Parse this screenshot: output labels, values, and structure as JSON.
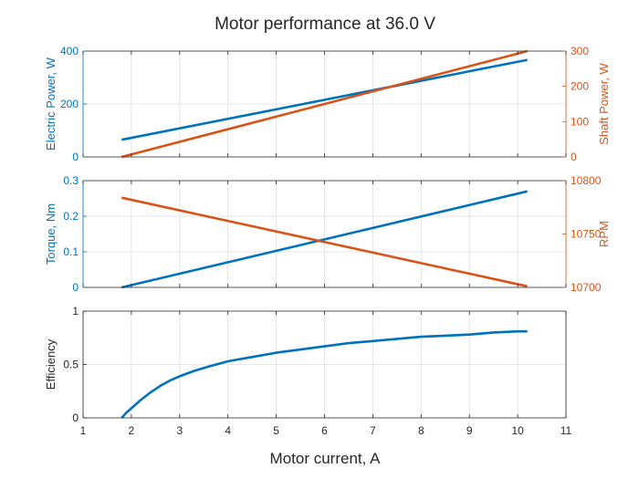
{
  "title": "Motor performance at 36.0 V",
  "xlabel": "Motor current, A",
  "colors": {
    "blue": "#0072BD",
    "orange": "#D95319",
    "axis": "#262626",
    "grid": "#dfdfdf"
  },
  "chart_data": [
    {
      "type": "line",
      "xlim": [
        1,
        11
      ],
      "grid": true,
      "left_axis": {
        "label": "Electric Power, W",
        "ylim": [
          0,
          400
        ],
        "ticks": [
          0,
          200,
          400
        ],
        "color": "#0072BD",
        "series": [
          {
            "x": [
              1.8,
              10.2
            ],
            "y": [
              65,
              367
            ]
          }
        ]
      },
      "right_axis": {
        "label": "Shaft Power, W",
        "ylim": [
          0,
          300
        ],
        "ticks": [
          0,
          100,
          200,
          300
        ],
        "color": "#D95319",
        "series": [
          {
            "x": [
              1.8,
              10.2
            ],
            "y": [
              0,
              300
            ]
          }
        ]
      }
    },
    {
      "type": "line",
      "xlim": [
        1,
        11
      ],
      "grid": true,
      "left_axis": {
        "label": "Torque, Nm",
        "ylim": [
          0,
          0.3
        ],
        "ticks": [
          0,
          0.1,
          0.2,
          0.3
        ],
        "color": "#0072BD",
        "series": [
          {
            "x": [
              1.8,
              10.2
            ],
            "y": [
              0,
              0.27
            ]
          }
        ]
      },
      "right_axis": {
        "label": "RPM",
        "ylim": [
          10700,
          10800
        ],
        "ticks": [
          10700,
          10750,
          10800
        ],
        "color": "#D95319",
        "series": [
          {
            "x": [
              1.8,
              10.2
            ],
            "y": [
              10784,
              10701
            ]
          }
        ]
      }
    },
    {
      "type": "line",
      "xlim": [
        1,
        11
      ],
      "xticks": [
        1,
        2,
        3,
        4,
        5,
        6,
        7,
        8,
        9,
        10,
        11
      ],
      "grid": true,
      "left_axis": {
        "label": "Efficiency",
        "ylim": [
          0,
          1
        ],
        "ticks": [
          0,
          0.5,
          1
        ],
        "color": "#262626",
        "series": [
          {
            "color": "#0072BD",
            "x": [
              1.8,
              1.9,
              2.0,
              2.2,
              2.4,
              2.6,
              2.8,
              3.0,
              3.3,
              3.6,
              4.0,
              4.5,
              5.0,
              5.5,
              6.0,
              6.5,
              7.0,
              7.5,
              8.0,
              8.5,
              9.0,
              9.5,
              10.0,
              10.2
            ],
            "y": [
              0,
              0.05,
              0.09,
              0.17,
              0.24,
              0.3,
              0.35,
              0.39,
              0.44,
              0.48,
              0.53,
              0.57,
              0.61,
              0.64,
              0.67,
              0.7,
              0.72,
              0.74,
              0.76,
              0.77,
              0.78,
              0.8,
              0.81,
              0.81
            ]
          }
        ]
      }
    }
  ]
}
